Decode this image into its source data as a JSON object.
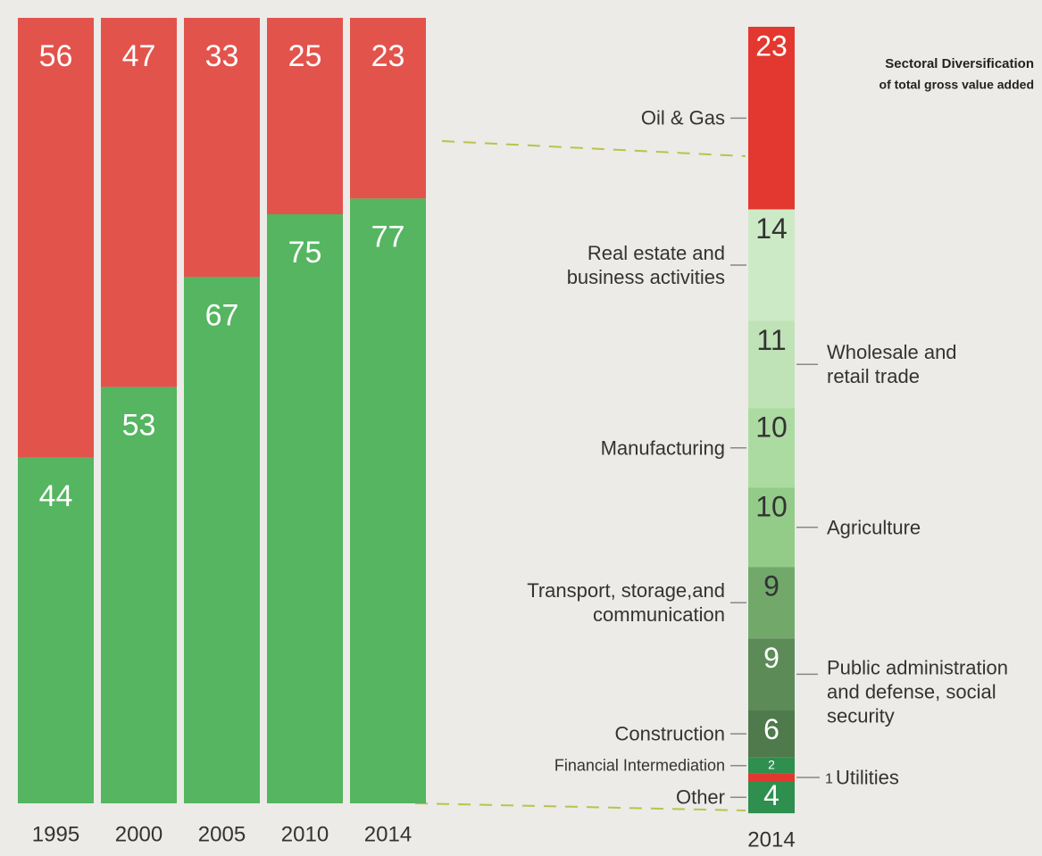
{
  "chart_data": [
    {
      "type": "stacked_bar",
      "categories": [
        "1995",
        "2000",
        "2005",
        "2010",
        "2014"
      ],
      "series": [
        {
          "color": "#55b560",
          "values": [
            44,
            53,
            67,
            75,
            77
          ]
        },
        {
          "color": "#e2534c",
          "values": [
            56,
            47,
            33,
            25,
            23
          ]
        }
      ]
    },
    {
      "type": "stacked_breakdown",
      "title": "Sectoral Diversification",
      "subtitle": "of total gross value added",
      "categories": [
        "2014"
      ],
      "series": [
        {
          "name": "Oil & Gas",
          "color": "#e2382f",
          "values": [
            23
          ]
        },
        {
          "name": "Real estate and\nbusiness activities",
          "color": "#cdeac6",
          "values": [
            14
          ]
        },
        {
          "name": "Wholesale and\nretail trade",
          "color": "#bfe3b6",
          "values": [
            11
          ]
        },
        {
          "name": "Manufacturing",
          "color": "#acdba1",
          "values": [
            10
          ]
        },
        {
          "name": "Agriculture",
          "color": "#92cc88",
          "values": [
            10
          ]
        },
        {
          "name": "Transport, storage,and\ncommunication",
          "color": "#72a96b",
          "values": [
            9
          ]
        },
        {
          "name": "Public administration\nand defense, social\nsecurity",
          "color": "#5c8b57",
          "values": [
            9
          ]
        },
        {
          "name": "Construction",
          "color": "#4f7a4c",
          "values": [
            6
          ]
        },
        {
          "name": "Financial Intermediation",
          "color": "#2e8f4e",
          "values": [
            2
          ]
        },
        {
          "name": "Utilities",
          "color": "#e2382f",
          "values": [
            1
          ]
        },
        {
          "name": "Other",
          "color": "#2e8f4e",
          "values": [
            4
          ]
        }
      ]
    }
  ]
}
